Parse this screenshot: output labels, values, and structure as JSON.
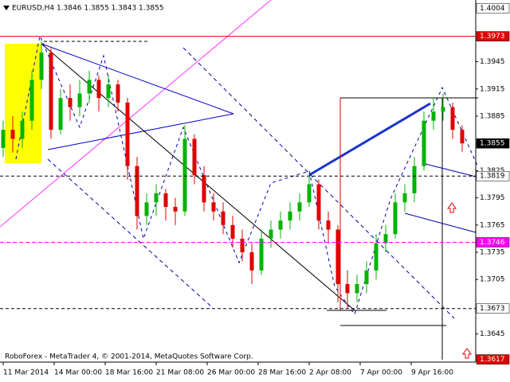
{
  "chart_data": {
    "type": "candlestick",
    "title": "EURUSD,H4  1.3846 1.3855 1.3843 1.3855",
    "caption": "RoboForex - MetaTrader 4, © 2001-2014, MetaQuotes Software Corp.",
    "up_color": "#00b400",
    "down_color": "#e00000",
    "xlim": [
      -1,
      148.25
    ],
    "xticks": [
      {
        "value": 0,
        "label": "11 Mar 2014"
      },
      {
        "value": 16,
        "label": "14 Mar 00:00"
      },
      {
        "value": 32,
        "label": "18 Mar 16:00"
      },
      {
        "value": 48,
        "label": "21 Mar 08:00"
      },
      {
        "value": 64,
        "label": "26 Mar 00:00"
      },
      {
        "value": 80,
        "label": "28 Mar 16:00"
      },
      {
        "value": 96,
        "label": "2 Apr 08:00"
      },
      {
        "value": 112,
        "label": "7 Apr 00:00"
      },
      {
        "value": 128,
        "label": "9 Apr 16:00"
      }
    ],
    "ylim": [
      1.3614,
      1.4013
    ],
    "yticks": [
      1.3945,
      1.3915,
      1.3885,
      1.3825,
      1.3795,
      1.3765,
      1.3735,
      1.3705,
      1.3645
    ],
    "levels": [
      {
        "value": 1.4004,
        "line": "none",
        "label_color": "#ffffff",
        "text_color": "#000000"
      },
      {
        "value": 1.3973,
        "line": "solid",
        "label_color": "#e00000",
        "text_color": "#ffffff"
      },
      {
        "value": 1.3855,
        "line": "none",
        "label_color": "#000000",
        "text_color": "#ffffff"
      },
      {
        "value": 1.3819,
        "line": "dashed",
        "label_color": "#ffffff",
        "text_color": "#000000"
      },
      {
        "value": 1.3746,
        "line": "magenta",
        "label_color": "#ff00ff",
        "text_color": "#ffffff"
      },
      {
        "value": 1.3673,
        "line": "dashed",
        "label_color": "#ffffff",
        "text_color": "#000000"
      },
      {
        "value": 1.3617,
        "line": "none",
        "label_color": "#e00000",
        "text_color": "#ffffff"
      }
    ],
    "x": [
      0,
      3,
      6,
      9,
      12,
      15,
      18,
      21,
      24,
      27,
      30,
      33,
      36,
      39,
      42,
      45,
      48,
      51,
      54,
      57,
      60,
      63,
      66,
      69,
      72,
      75,
      78,
      81,
      84,
      87,
      90,
      93,
      96,
      99,
      102,
      105,
      108,
      111,
      114,
      117,
      120,
      123,
      126,
      129,
      132,
      135,
      138,
      141,
      144
    ],
    "open": [
      1.385,
      1.387,
      1.386,
      1.388,
      1.3925,
      1.3955,
      1.387,
      1.3905,
      1.3895,
      1.391,
      1.3925,
      1.3905,
      1.392,
      1.39,
      1.383,
      1.3775,
      1.379,
      1.38,
      1.3785,
      1.378,
      1.386,
      1.382,
      1.379,
      1.378,
      1.3765,
      1.375,
      1.3735,
      1.3715,
      1.375,
      1.376,
      1.377,
      1.378,
      1.379,
      1.381,
      1.377,
      1.376,
      1.37,
      1.369,
      1.37,
      1.3715,
      1.3745,
      1.3755,
      1.379,
      1.38,
      1.383,
      1.388,
      1.389,
      1.3895,
      1.387
    ],
    "high": [
      1.388,
      1.3885,
      1.389,
      1.3935,
      1.3968,
      1.396,
      1.3915,
      1.392,
      1.3925,
      1.3935,
      1.393,
      1.393,
      1.3925,
      1.3905,
      1.384,
      1.38,
      1.381,
      1.3805,
      1.3795,
      1.3875,
      1.3865,
      1.383,
      1.38,
      1.379,
      1.3775,
      1.376,
      1.3745,
      1.376,
      1.377,
      1.378,
      1.379,
      1.38,
      1.382,
      1.3815,
      1.378,
      1.3765,
      1.3715,
      1.371,
      1.3725,
      1.3755,
      1.3765,
      1.38,
      1.381,
      1.384,
      1.389,
      1.3905,
      1.391,
      1.39,
      1.3875
    ],
    "low": [
      1.384,
      1.3845,
      1.385,
      1.387,
      1.3915,
      1.386,
      1.3865,
      1.388,
      1.3885,
      1.39,
      1.389,
      1.3895,
      1.389,
      1.3815,
      1.376,
      1.3765,
      1.3775,
      1.377,
      1.3765,
      1.3775,
      1.381,
      1.378,
      1.377,
      1.3755,
      1.374,
      1.3725,
      1.37,
      1.371,
      1.374,
      1.375,
      1.376,
      1.377,
      1.3785,
      1.376,
      1.3745,
      1.368,
      1.3673,
      1.368,
      1.369,
      1.3705,
      1.3735,
      1.375,
      1.378,
      1.379,
      1.3825,
      1.387,
      1.388,
      1.386,
      1.3846
    ],
    "close": [
      1.387,
      1.386,
      1.388,
      1.3925,
      1.3955,
      1.387,
      1.3905,
      1.3895,
      1.391,
      1.3925,
      1.3905,
      1.392,
      1.39,
      1.383,
      1.3775,
      1.379,
      1.38,
      1.3785,
      1.378,
      1.386,
      1.382,
      1.379,
      1.378,
      1.3765,
      1.375,
      1.3735,
      1.3715,
      1.375,
      1.376,
      1.377,
      1.378,
      1.379,
      1.381,
      1.377,
      1.376,
      1.37,
      1.369,
      1.37,
      1.3715,
      1.3745,
      1.3755,
      1.379,
      1.38,
      1.383,
      1.388,
      1.389,
      1.3895,
      1.387,
      1.3855
    ]
  }
}
